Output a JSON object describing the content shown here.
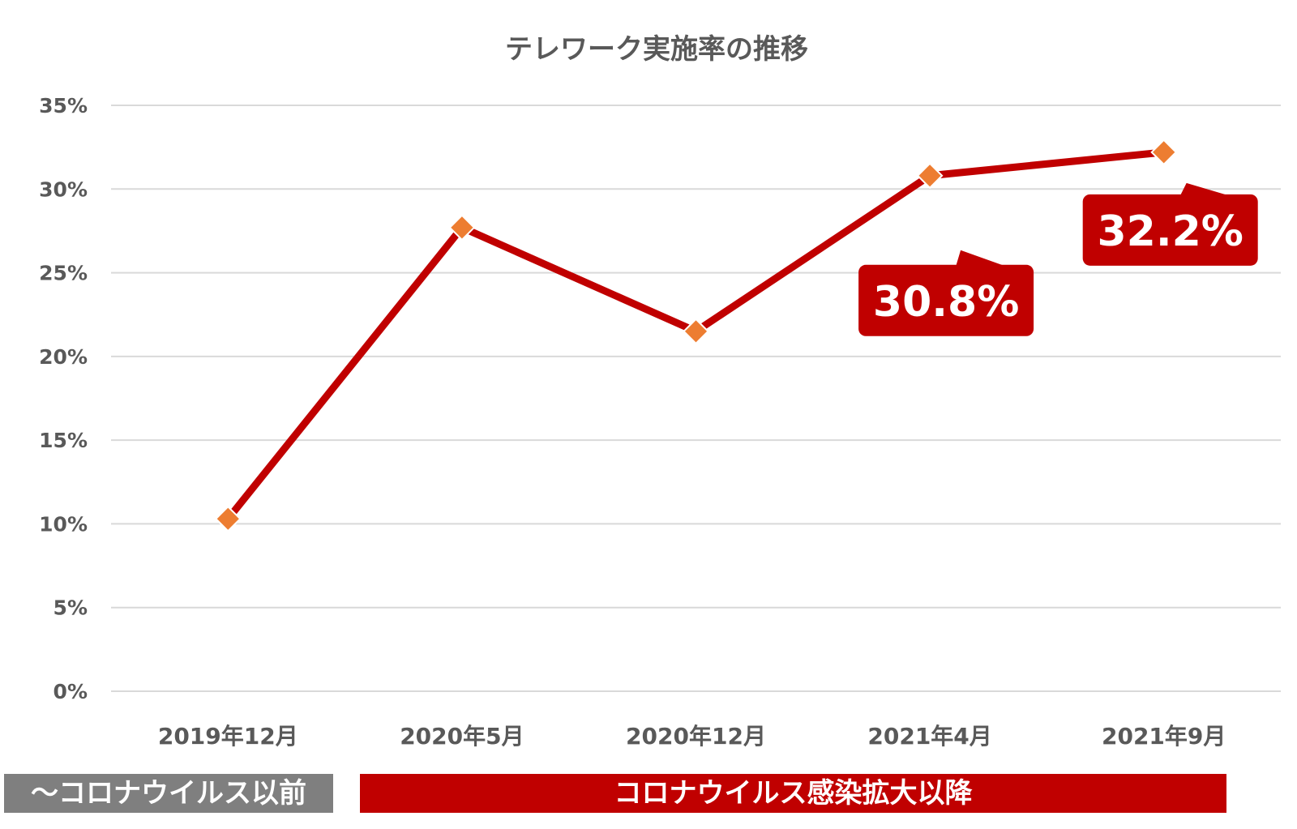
{
  "chart_data": {
    "type": "line",
    "title": "テレワーク実施率の推移",
    "categories": [
      "2019年12月",
      "2020年5月",
      "2020年12月",
      "2021年4月",
      "2021年9月"
    ],
    "series": [
      {
        "values": [
          10.3,
          27.7,
          21.5,
          30.8,
          32.2
        ]
      }
    ],
    "ylim": [
      0,
      35
    ],
    "yticks": [
      "0%",
      "5%",
      "10%",
      "15%",
      "20%",
      "25%",
      "30%",
      "35%"
    ],
    "ytick_values": [
      0,
      5,
      10,
      15,
      20,
      25,
      30,
      35
    ],
    "grid": true,
    "annotations": [
      {
        "category_index": 3,
        "text": "30.8%"
      },
      {
        "category_index": 4,
        "text": "32.2%"
      }
    ]
  },
  "bands": {
    "pre_covid": "～コロナウイルス以前",
    "post_covid": "コロナウイルス感染拡大以降"
  },
  "colors": {
    "line": "#c00000",
    "marker": "#ed7d31",
    "callout": "#c00000",
    "grid": "#d9d9d9",
    "text": "#595959",
    "band_gray": "#7f7f7f",
    "band_red": "#c00000"
  }
}
